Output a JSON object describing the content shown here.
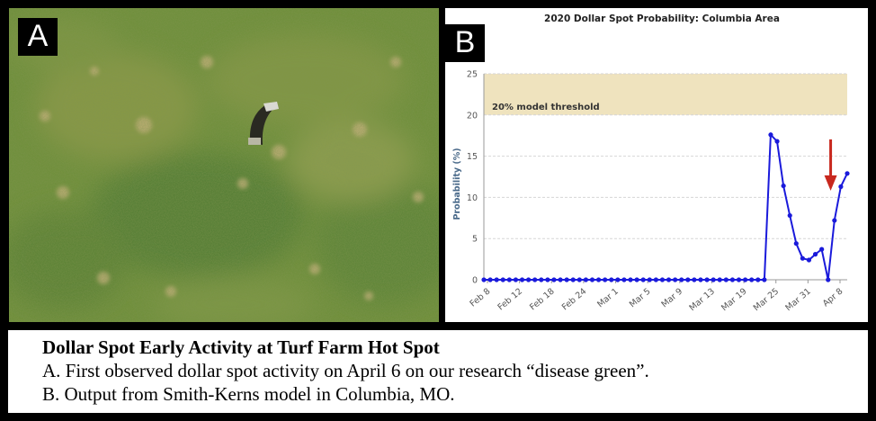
{
  "panel_a": {
    "label": "A"
  },
  "panel_b": {
    "label": "B"
  },
  "chart_data": {
    "type": "line",
    "title": "2020 Dollar Spot Probability: Columbia Area",
    "ylabel": "Probability (%)",
    "xlabel": "",
    "ylim": [
      0,
      25
    ],
    "yticks": [
      0,
      5,
      10,
      15,
      20,
      25
    ],
    "xtick_labels": [
      "Feb 8",
      "Feb 12",
      "Feb 18",
      "Feb 24",
      "Mar 1",
      "Mar 5",
      "Mar 9",
      "Mar 13",
      "Mar 19",
      "Mar 25",
      "Mar 31",
      "Apr 8"
    ],
    "threshold_band": {
      "label": "20% model threshold",
      "from": 20,
      "to": 25,
      "color": "#efe3be"
    },
    "series": [
      {
        "color": "#1a1adb",
        "values": [
          0,
          0,
          0,
          0,
          0,
          0,
          0,
          0,
          0,
          0,
          0,
          0,
          0,
          0,
          0,
          0,
          0,
          0,
          0,
          0,
          0,
          0,
          0,
          0,
          0,
          0,
          0,
          0,
          0,
          0,
          0,
          0,
          0,
          0,
          0,
          0,
          0,
          0,
          0,
          0,
          0,
          0,
          0,
          0,
          0,
          17.6,
          16.8,
          11.4,
          7.8,
          4.4,
          2.6,
          2.4,
          3.1,
          3.7,
          0,
          7.2,
          11.3,
          12.9
        ]
      }
    ],
    "annotation": {
      "type": "arrow",
      "color": "#c8281e",
      "points_to_index": 54
    }
  },
  "caption": {
    "title": "Dollar Spot Early Activity at Turf Farm Hot Spot",
    "line_a": "A. First observed dollar spot activity on April 6 on our research “disease green”.",
    "line_b": "B. Output from Smith-Kerns model in Columbia, MO."
  }
}
